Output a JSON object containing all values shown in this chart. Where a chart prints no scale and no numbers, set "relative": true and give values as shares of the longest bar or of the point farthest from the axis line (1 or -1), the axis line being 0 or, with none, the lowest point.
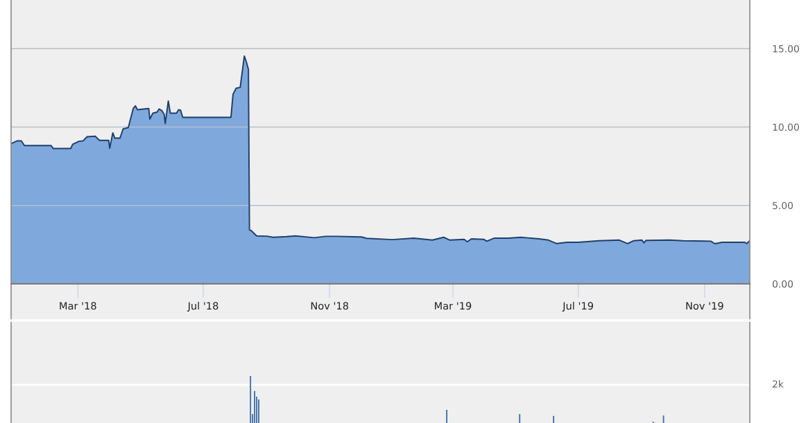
{
  "chart_data": [
    {
      "type": "area",
      "x": [
        "2017-12-26",
        "2018-01-01",
        "2018-01-05",
        "2018-01-08",
        "2018-02-03",
        "2018-02-05",
        "2018-02-22",
        "2018-02-24",
        "2018-03-02",
        "2018-03-06",
        "2018-03-10",
        "2018-03-18",
        "2018-03-22",
        "2018-03-31",
        "2018-04-01",
        "2018-04-04",
        "2018-04-06",
        "2018-04-11",
        "2018-04-14",
        "2018-04-19",
        "2018-04-24",
        "2018-04-26",
        "2018-04-28",
        "2018-05-04",
        "2018-05-09",
        "2018-05-10",
        "2018-05-13",
        "2018-05-17",
        "2018-05-19",
        "2018-05-22",
        "2018-05-24",
        "2018-05-25",
        "2018-05-28",
        "2018-05-30",
        "2018-06-05",
        "2018-06-07",
        "2018-06-09",
        "2018-06-11",
        "2018-07-28",
        "2018-07-30",
        "2018-08-02",
        "2018-08-06",
        "2018-08-10",
        "2018-08-12",
        "2018-08-14",
        "2018-08-15",
        "2018-08-17",
        "2018-08-22",
        "2018-09-01",
        "2018-09-07",
        "2018-09-20",
        "2018-09-29",
        "2018-10-17",
        "2018-10-28",
        "2018-11-08",
        "2018-12-02",
        "2018-12-07",
        "2019-01-01",
        "2019-01-22",
        "2019-02-09",
        "2019-02-20",
        "2019-02-26",
        "2019-03-12",
        "2019-03-15",
        "2019-03-19",
        "2019-03-31",
        "2019-04-03",
        "2019-04-10",
        "2019-04-24",
        "2019-05-06",
        "2019-05-24",
        "2019-06-02",
        "2019-06-10",
        "2019-06-20",
        "2019-07-01",
        "2019-07-21",
        "2019-08-10",
        "2019-08-18",
        "2019-08-24",
        "2019-09-01",
        "2019-09-03",
        "2019-09-05",
        "2019-09-28",
        "2019-10-11",
        "2019-11-07",
        "2019-11-11",
        "2019-11-18",
        "2019-12-10",
        "2019-12-12",
        "2019-12-15"
      ],
      "series": [
        {
          "color": "#7fa8dc",
          "values": [
            8.94,
            9.12,
            9.12,
            8.82,
            8.82,
            8.63,
            8.63,
            8.9,
            9.09,
            9.12,
            9.38,
            9.41,
            9.15,
            9.15,
            8.65,
            9.63,
            9.29,
            9.29,
            9.88,
            9.96,
            11.2,
            11.35,
            11.1,
            11.15,
            11.18,
            10.51,
            10.88,
            10.95,
            11.15,
            11.03,
            10.81,
            10.22,
            11.66,
            10.88,
            10.88,
            11.1,
            11.07,
            10.62,
            10.62,
            12.09,
            12.47,
            12.53,
            14.53,
            14.15,
            13.67,
            3.45,
            3.38,
            3.06,
            3.04,
            2.97,
            3.01,
            3.06,
            2.94,
            3.03,
            3.03,
            2.99,
            2.9,
            2.82,
            2.91,
            2.79,
            2.97,
            2.79,
            2.84,
            2.68,
            2.87,
            2.84,
            2.72,
            2.91,
            2.91,
            2.97,
            2.87,
            2.79,
            2.57,
            2.65,
            2.65,
            2.75,
            2.79,
            2.57,
            2.75,
            2.79,
            2.62,
            2.77,
            2.79,
            2.75,
            2.72,
            2.56,
            2.65,
            2.65,
            2.57,
            2.75
          ]
        }
      ],
      "xlim": [
        "2017-12-26",
        "2019-12-15"
      ],
      "xticks": [
        {
          "value": "2018-03-01",
          "label": "Mar '18"
        },
        {
          "value": "2018-07-01",
          "label": "Jul '18"
        },
        {
          "value": "2018-11-01",
          "label": "Nov '18"
        },
        {
          "value": "2019-03-01",
          "label": "Mar '19"
        },
        {
          "value": "2019-07-01",
          "label": "Jul '19"
        },
        {
          "value": "2019-11-01",
          "label": "Nov '19"
        }
      ],
      "ylim": [
        0,
        18.1
      ],
      "yticks": [
        {
          "value": 0,
          "label": "0.00"
        },
        {
          "value": 5,
          "label": "5.00"
        },
        {
          "value": 10,
          "label": "10.00"
        },
        {
          "value": 15,
          "label": "15.00"
        }
      ],
      "grid": "y"
    },
    {
      "type": "bar",
      "x": [
        "2018-08-16",
        "2018-08-18",
        "2018-08-20",
        "2018-08-22",
        "2018-08-24",
        "2019-02-23",
        "2019-05-05",
        "2019-06-07",
        "2019-09-12",
        "2019-09-22"
      ],
      "series": [
        {
          "color": "#4572a7",
          "values": [
            1.0,
            0.19,
            0.68,
            0.56,
            0.5,
            0.28,
            0.19,
            0.15,
            0.03,
            0.16
          ]
        }
      ],
      "relative": true,
      "xlim": [
        "2017-12-26",
        "2019-12-15"
      ],
      "ref_lines": [
        {
          "axis": "y",
          "value": 0.81,
          "label": "2k",
          "color": "#ffffff"
        }
      ]
    }
  ]
}
